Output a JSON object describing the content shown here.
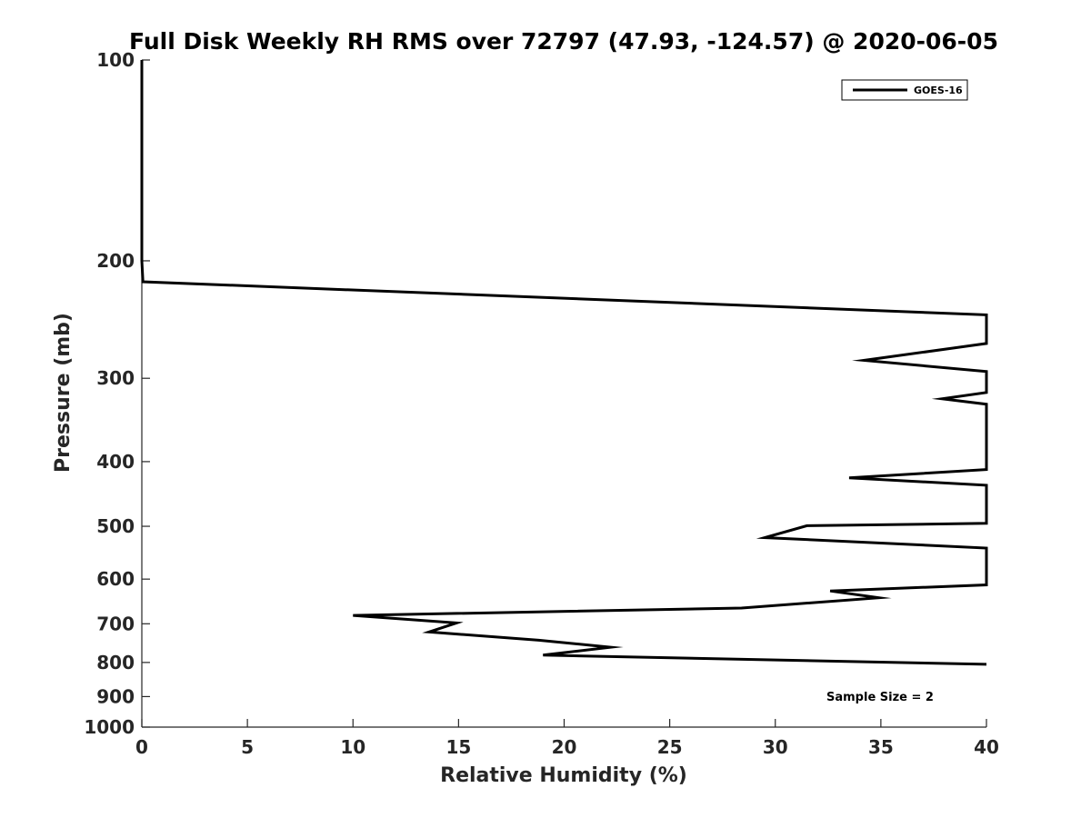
{
  "chart_data": {
    "type": "line",
    "title": "Full Disk Weekly RH RMS over 72797 (47.93, -124.57) @ 2020-06-05",
    "xlabel": "Relative Humidity (%)",
    "ylabel": "Pressure (mb)",
    "xlim": [
      0,
      40
    ],
    "ylim": [
      100,
      1000
    ],
    "yscale": "log",
    "y_reversed": true,
    "grid": false,
    "legend_position": "top-right",
    "x_ticks": [
      0,
      5,
      10,
      15,
      20,
      25,
      30,
      35,
      40
    ],
    "y_ticks": [
      100,
      200,
      300,
      400,
      500,
      600,
      700,
      800,
      900,
      1000
    ],
    "annotation": "Sample Size = 2",
    "series": [
      {
        "name": "GOES-16",
        "color": "#000000",
        "points": [
          {
            "x": 0.0,
            "p": 100
          },
          {
            "x": 0.0,
            "p": 150
          },
          {
            "x": 0.0,
            "p": 200
          },
          {
            "x": 0.05,
            "p": 215
          },
          {
            "x": 40.0,
            "p": 241
          },
          {
            "x": 40.0,
            "p": 266
          },
          {
            "x": 34.2,
            "p": 282
          },
          {
            "x": 40.0,
            "p": 293
          },
          {
            "x": 40.0,
            "p": 315
          },
          {
            "x": 37.9,
            "p": 322
          },
          {
            "x": 40.0,
            "p": 328
          },
          {
            "x": 40.0,
            "p": 411
          },
          {
            "x": 33.5,
            "p": 423
          },
          {
            "x": 40.0,
            "p": 434
          },
          {
            "x": 40.0,
            "p": 495
          },
          {
            "x": 31.5,
            "p": 499
          },
          {
            "x": 29.5,
            "p": 520
          },
          {
            "x": 40.0,
            "p": 539
          },
          {
            "x": 40.0,
            "p": 612
          },
          {
            "x": 32.6,
            "p": 625
          },
          {
            "x": 34.9,
            "p": 640
          },
          {
            "x": 28.4,
            "p": 663
          },
          {
            "x": 10.0,
            "p": 680
          },
          {
            "x": 14.9,
            "p": 698
          },
          {
            "x": 13.6,
            "p": 720
          },
          {
            "x": 18.8,
            "p": 741
          },
          {
            "x": 22.2,
            "p": 759
          },
          {
            "x": 19.0,
            "p": 780
          },
          {
            "x": 40.0,
            "p": 805
          }
        ]
      }
    ]
  }
}
